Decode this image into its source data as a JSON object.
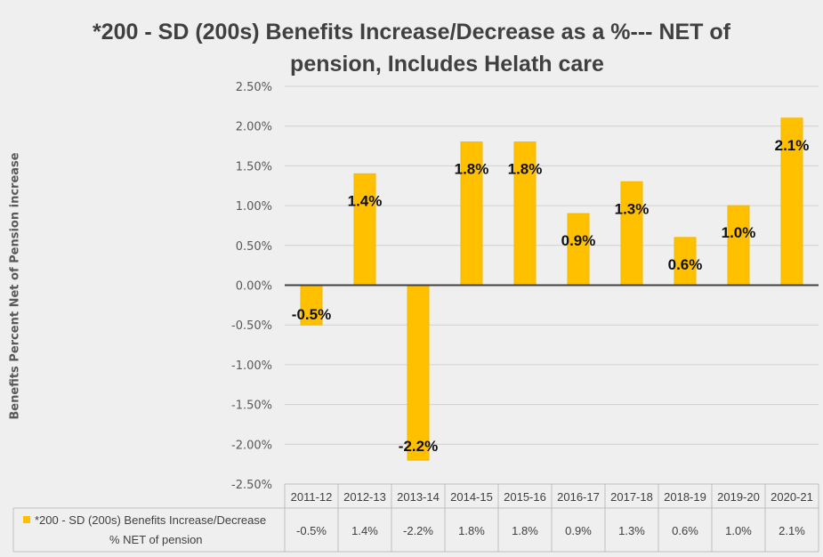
{
  "chart_data": {
    "type": "bar",
    "title": "*200 - SD (200s) Benefits Increase/Decrease as a %--- NET of pension, Includes Helath care",
    "title_lines": [
      "*200 - SD (200s) Benefits Increase/Decrease as a %--- NET of",
      "pension, Includes Helath care"
    ],
    "ylabel": "Benefits Percent Net of Pension increase",
    "xlabel": "",
    "categories": [
      "2011-12",
      "2012-13",
      "2013-14",
      "2014-15",
      "2015-16",
      "2016-17",
      "2017-18",
      "2018-19",
      "2019-20",
      "2020-21"
    ],
    "series": [
      {
        "name": "*200 - SD (200s) Benefits Increase/Decrease % NET of pension",
        "legend_lines": [
          "*200 - SD (200s) Benefits Increase/Decrease",
          "% NET of pension"
        ],
        "values": [
          -0.5,
          1.4,
          -2.2,
          1.8,
          1.8,
          0.9,
          1.3,
          0.6,
          1.0,
          2.1
        ],
        "data_labels": [
          "-0.5%",
          "1.4%",
          "-2.2%",
          "1.8%",
          "1.8%",
          "0.9%",
          "1.3%",
          "0.6%",
          "1.0%",
          "2.1%"
        ],
        "table_values": [
          "-0.5%",
          "1.4%",
          "-2.2%",
          "1.8%",
          "1.8%",
          "0.9%",
          "1.3%",
          "0.6%",
          "1.0%",
          "2.1%"
        ]
      }
    ],
    "ylim": [
      -2.5,
      2.5
    ],
    "yticks": [
      2.5,
      2.0,
      1.5,
      1.0,
      0.5,
      0.0,
      -0.5,
      -1.0,
      -1.5,
      -2.0,
      -2.5
    ],
    "ytick_labels": [
      "2.50%",
      "2.00%",
      "1.50%",
      "1.00%",
      "0.50%",
      "0.00%",
      "-0.50%",
      "-1.00%",
      "-1.50%",
      "-2.00%",
      "-2.50%"
    ],
    "grid": true,
    "legend": "data-table-left",
    "colors": {
      "bar": "#FFC000",
      "bar_edge": "#F2B800",
      "text": "#404040",
      "grid": "#d0d0d0",
      "zero_line": "#404040"
    }
  }
}
